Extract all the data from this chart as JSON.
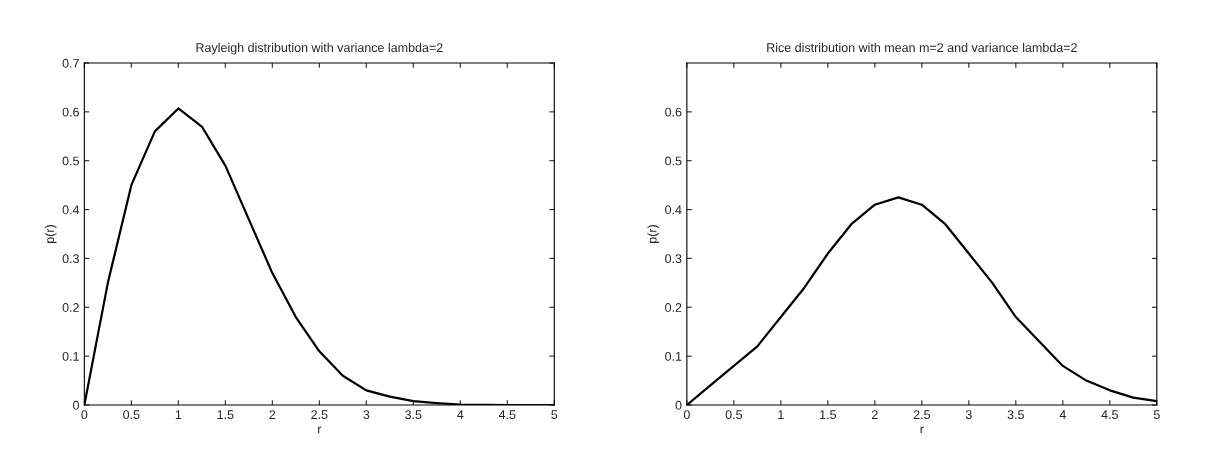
{
  "chart_data": [
    {
      "type": "line",
      "title": "Rayleigh distribution with variance lambda=2",
      "xlabel": "r",
      "ylabel": "p(r)",
      "xlim": [
        0,
        5
      ],
      "ylim": [
        0,
        0.7
      ],
      "xticks": [
        0,
        0.5,
        1,
        1.5,
        2,
        2.5,
        3,
        3.5,
        4,
        4.5,
        5
      ],
      "yticks": [
        0,
        0.1,
        0.2,
        0.3,
        0.4,
        0.5,
        0.6,
        0.7
      ],
      "grid": false,
      "series": [
        {
          "color": "#000000",
          "x": [
            0,
            0.1,
            0.25,
            0.5,
            0.75,
            1,
            1.25,
            1.5,
            1.75,
            2,
            2.25,
            2.5,
            2.75,
            3,
            3.25,
            3.5,
            3.75,
            4,
            4.5,
            5
          ],
          "values": [
            0,
            0.1,
            0.25,
            0.45,
            0.56,
            0.607,
            0.57,
            0.49,
            0.38,
            0.27,
            0.18,
            0.11,
            0.06,
            0.03,
            0.017,
            0.008,
            0.004,
            0.001,
            0,
            0
          ]
        }
      ]
    },
    {
      "type": "line",
      "title": "Rice distribution with mean m=2 and variance lambda=2",
      "xlabel": "r",
      "ylabel": "p(r)",
      "xlim": [
        0,
        5
      ],
      "ylim": [
        0,
        0.7
      ],
      "xticks": [
        0,
        0.5,
        1,
        1.5,
        2,
        2.5,
        3,
        3.5,
        4,
        4.5,
        5
      ],
      "yticks": [
        0,
        0.1,
        0.2,
        0.3,
        0.4,
        0.5,
        0.6
      ],
      "grid": false,
      "series": [
        {
          "color": "#000000",
          "x": [
            0,
            0.25,
            0.5,
            0.75,
            1,
            1.25,
            1.5,
            1.75,
            2,
            2.25,
            2.5,
            2.75,
            3,
            3.25,
            3.5,
            3.75,
            4,
            4.25,
            4.5,
            4.75,
            5
          ],
          "values": [
            0,
            0.04,
            0.08,
            0.12,
            0.18,
            0.24,
            0.31,
            0.37,
            0.41,
            0.425,
            0.41,
            0.37,
            0.31,
            0.25,
            0.18,
            0.13,
            0.08,
            0.05,
            0.03,
            0.015,
            0.008
          ]
        }
      ]
    }
  ]
}
